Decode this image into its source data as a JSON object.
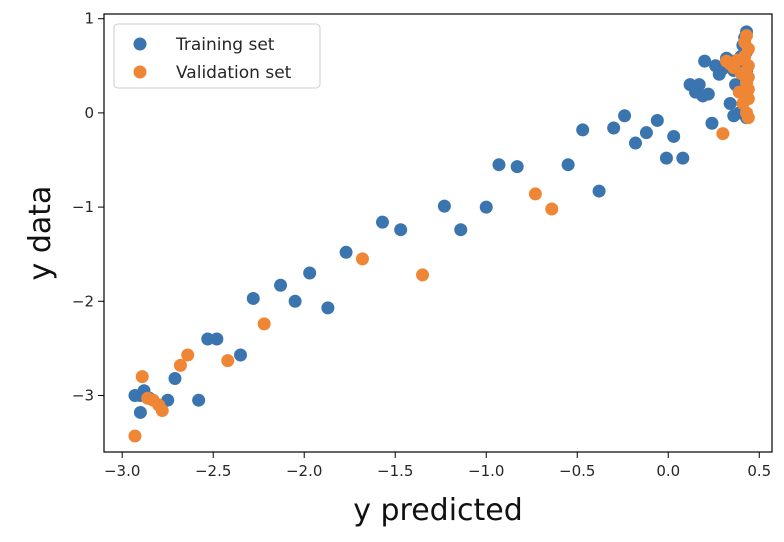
{
  "chart_data": {
    "type": "scatter",
    "xlabel": "y predicted",
    "ylabel": "y data",
    "xlim": [
      -3.1,
      0.57
    ],
    "ylim": [
      -3.6,
      1.05
    ],
    "xticks": [
      -3.0,
      -2.5,
      -2.0,
      -1.5,
      -1.0,
      -0.5,
      0.0,
      0.5
    ],
    "xtick_labels": [
      "−3.0",
      "−2.5",
      "−2.0",
      "−1.5",
      "−1.0",
      "−0.5",
      "0.0",
      "0.5"
    ],
    "yticks": [
      -3,
      -2,
      -1,
      0,
      1
    ],
    "ytick_labels": [
      "−3",
      "−2",
      "−1",
      "0",
      "1"
    ],
    "grid": false,
    "legend_position": "top-left",
    "series": [
      {
        "name": "Training set",
        "color": "#3b75af",
        "points": [
          [
            -2.93,
            -3.0
          ],
          [
            -2.9,
            -3.0
          ],
          [
            -2.9,
            -3.18
          ],
          [
            -2.88,
            -2.95
          ],
          [
            -2.85,
            -3.03
          ],
          [
            -2.75,
            -3.05
          ],
          [
            -2.71,
            -2.82
          ],
          [
            -2.58,
            -3.05
          ],
          [
            -2.53,
            -2.4
          ],
          [
            -2.48,
            -2.4
          ],
          [
            -2.35,
            -2.57
          ],
          [
            -2.28,
            -1.97
          ],
          [
            -2.13,
            -1.83
          ],
          [
            -2.05,
            -2.0
          ],
          [
            -1.97,
            -1.7
          ],
          [
            -1.87,
            -2.07
          ],
          [
            -1.77,
            -1.48
          ],
          [
            -1.57,
            -1.16
          ],
          [
            -1.47,
            -1.24
          ],
          [
            -1.23,
            -0.99
          ],
          [
            -1.14,
            -1.24
          ],
          [
            -1.0,
            -1.0
          ],
          [
            -0.93,
            -0.55
          ],
          [
            -0.83,
            -0.57
          ],
          [
            -0.55,
            -0.55
          ],
          [
            -0.47,
            -0.18
          ],
          [
            -0.38,
            -0.83
          ],
          [
            -0.3,
            -0.16
          ],
          [
            -0.24,
            -0.03
          ],
          [
            -0.18,
            -0.32
          ],
          [
            -0.12,
            -0.21
          ],
          [
            -0.06,
            -0.08
          ],
          [
            -0.01,
            -0.48
          ],
          [
            0.03,
            -0.25
          ],
          [
            0.08,
            -0.48
          ],
          [
            0.12,
            0.3
          ],
          [
            0.15,
            0.22
          ],
          [
            0.17,
            0.3
          ],
          [
            0.19,
            0.18
          ],
          [
            0.2,
            0.55
          ],
          [
            0.22,
            0.2
          ],
          [
            0.24,
            -0.11
          ],
          [
            0.26,
            0.5
          ],
          [
            0.28,
            0.41
          ],
          [
            0.3,
            0.47
          ],
          [
            0.32,
            0.58
          ],
          [
            0.34,
            0.1
          ],
          [
            0.35,
            0.55
          ],
          [
            0.36,
            0.45
          ],
          [
            0.36,
            -0.03
          ],
          [
            0.37,
            0.3
          ],
          [
            0.38,
            0.5
          ],
          [
            0.39,
            0.0
          ],
          [
            0.4,
            0.6
          ],
          [
            0.41,
            0.72
          ],
          [
            0.42,
            0.8
          ],
          [
            0.43,
            0.86
          ],
          [
            0.43,
            0.65
          ],
          [
            0.43,
            0.45
          ],
          [
            0.43,
            0.2
          ],
          [
            0.43,
            -0.05
          ]
        ]
      },
      {
        "name": "Validation set",
        "color": "#ef8636",
        "points": [
          [
            -2.93,
            -3.43
          ],
          [
            -2.89,
            -2.8
          ],
          [
            -2.86,
            -3.03
          ],
          [
            -2.83,
            -3.05
          ],
          [
            -2.8,
            -3.1
          ],
          [
            -2.78,
            -3.16
          ],
          [
            -2.68,
            -2.68
          ],
          [
            -2.64,
            -2.57
          ],
          [
            -2.42,
            -2.63
          ],
          [
            -2.22,
            -2.24
          ],
          [
            -1.68,
            -1.55
          ],
          [
            -1.35,
            -1.72
          ],
          [
            -0.73,
            -0.86
          ],
          [
            -0.64,
            -1.02
          ],
          [
            0.3,
            -0.22
          ],
          [
            0.32,
            0.55
          ],
          [
            0.34,
            0.52
          ],
          [
            0.36,
            0.48
          ],
          [
            0.38,
            0.56
          ],
          [
            0.39,
            0.22
          ],
          [
            0.4,
            0.42
          ],
          [
            0.41,
            0.1
          ],
          [
            0.42,
            0.75
          ],
          [
            0.42,
            0.6
          ],
          [
            0.43,
            0.32
          ],
          [
            0.43,
            0.0
          ],
          [
            0.43,
            0.82
          ],
          [
            0.44,
            0.68
          ],
          [
            0.44,
            0.5
          ],
          [
            0.44,
            0.38
          ],
          [
            0.44,
            0.15
          ],
          [
            0.44,
            -0.05
          ],
          [
            0.44,
            0.25
          ]
        ]
      }
    ]
  }
}
